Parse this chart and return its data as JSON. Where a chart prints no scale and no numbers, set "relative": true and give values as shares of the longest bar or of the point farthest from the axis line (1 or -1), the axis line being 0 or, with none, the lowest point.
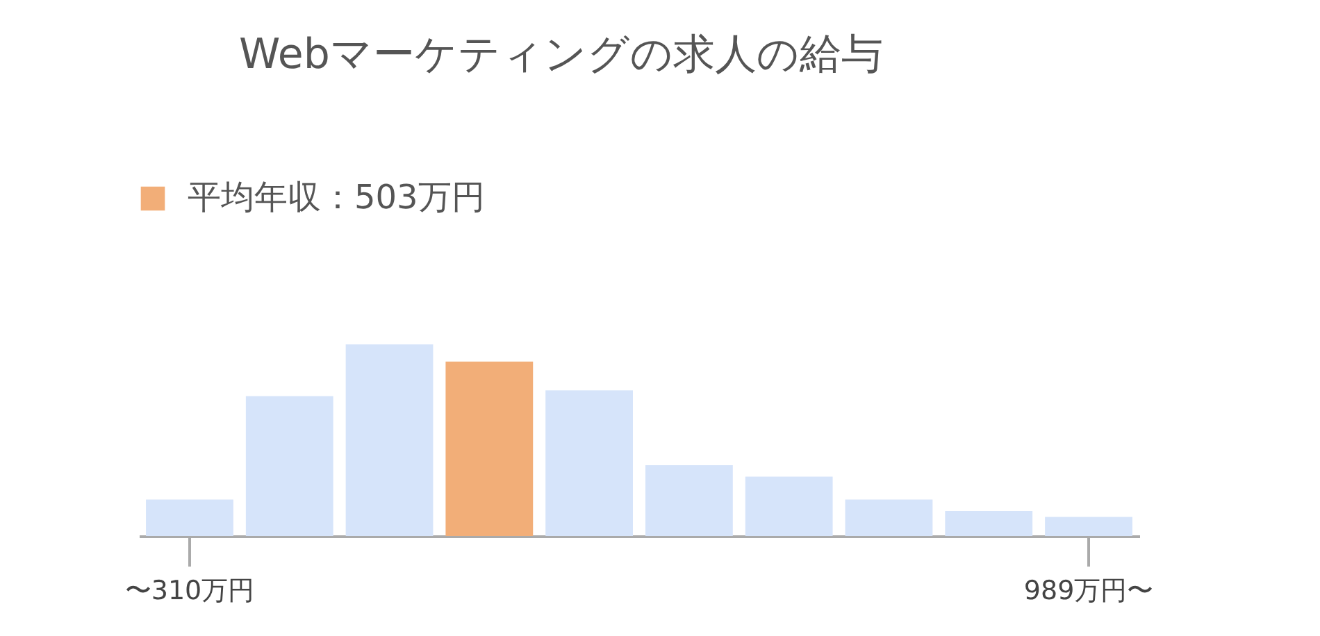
{
  "chart_data": {
    "type": "bar",
    "title": "Webマーケティングの求人の給与",
    "annotations": [
      "平均年収：503万円"
    ],
    "categories": [
      "〜310万円",
      null,
      null,
      null,
      null,
      null,
      null,
      null,
      null,
      "989万円〜"
    ],
    "values": [
      0.19,
      0.73,
      1,
      0.91,
      0.76,
      0.37,
      0.31,
      0.19,
      0.13,
      0.1
    ],
    "colors": [
      "#d6e4fa",
      "#d6e4fa",
      "#d6e4fa",
      "#f2ae78",
      "#d6e4fa",
      "#d6e4fa",
      "#d6e4fa",
      "#d6e4fa",
      "#d6e4fa",
      "#d6e4fa"
    ],
    "relative": true
  }
}
